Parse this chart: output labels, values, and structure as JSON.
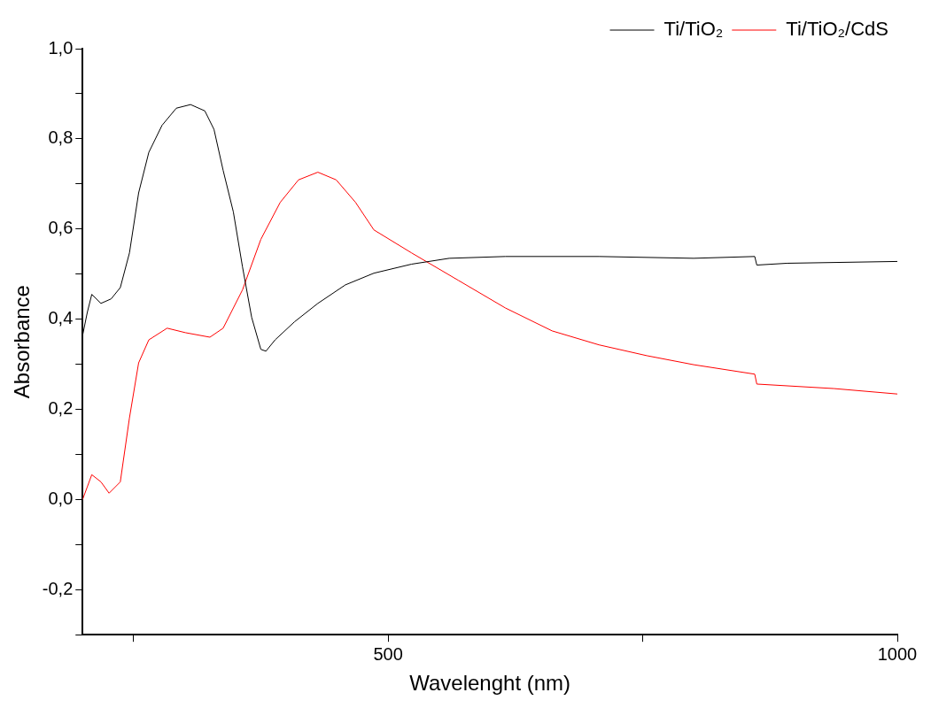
{
  "chart_data": {
    "type": "line",
    "xlabel": "Wavelenght (nm)",
    "ylabel": "Absorbance",
    "xlim": [
      200,
      1000
    ],
    "ylim": [
      -0.3,
      1.0
    ],
    "xticks": [
      {
        "value": 250,
        "label": null
      },
      500,
      {
        "value": 750,
        "label": null
      },
      1000
    ],
    "yticks": [
      {
        "value": -0.3,
        "label": null
      },
      {
        "value": -0.2,
        "label": "-0,2"
      },
      {
        "value": -0.1,
        "label": null
      },
      {
        "value": 0,
        "label": "0,0"
      },
      {
        "value": 0.1,
        "label": null
      },
      {
        "value": 0.2,
        "label": "0,2"
      },
      {
        "value": 0.3,
        "label": null
      },
      {
        "value": 0.4,
        "label": "0,4"
      },
      {
        "value": 0.5,
        "label": null
      },
      {
        "value": 0.6,
        "label": "0,6"
      },
      {
        "value": 0.7,
        "label": null
      },
      {
        "value": 0.8,
        "label": "0,8"
      },
      {
        "value": 0.9,
        "label": null
      },
      {
        "value": 1.0,
        "label": "1,0"
      }
    ],
    "grid": false,
    "legend": "top right",
    "marker": "none",
    "line_style": "solid",
    "series": [
      {
        "name": "Ti/TiO₂",
        "color": "#000000",
        "x": [
          200,
          204.6,
          209,
          218,
          228,
          237,
          246,
          255,
          265,
          278,
          292,
          306,
          320,
          329,
          338,
          348,
          357,
          366,
          375,
          380,
          389,
          408,
          431,
          458,
          486,
          523,
          560,
          615,
          707,
          800,
          860,
          862,
          892,
          1000
        ],
        "values": [
          0.364,
          0.415,
          0.455,
          0.435,
          0.445,
          0.47,
          0.547,
          0.68,
          0.77,
          0.83,
          0.868,
          0.876,
          0.862,
          0.821,
          0.73,
          0.638,
          0.516,
          0.404,
          0.333,
          0.329,
          0.354,
          0.394,
          0.435,
          0.476,
          0.502,
          0.522,
          0.535,
          0.539,
          0.539,
          0.535,
          0.539,
          0.52,
          0.524,
          0.528
        ]
      },
      {
        "name": "Ti/TiO₂/CdS",
        "color": "#ff0000",
        "x": [
          200,
          204.6,
          209,
          218,
          226,
          237,
          246,
          255,
          265,
          283,
          301,
          325,
          338,
          357,
          375,
          394,
          412,
          431,
          449,
          468,
          486,
          523,
          569,
          615,
          661,
          707,
          754,
          800,
          860,
          862,
          938,
          1000
        ],
        "values": [
          0.0,
          0.028,
          0.055,
          0.039,
          0.014,
          0.039,
          0.181,
          0.303,
          0.354,
          0.38,
          0.37,
          0.36,
          0.38,
          0.465,
          0.577,
          0.659,
          0.709,
          0.726,
          0.709,
          0.659,
          0.598,
          0.547,
          0.486,
          0.425,
          0.374,
          0.343,
          0.319,
          0.299,
          0.278,
          0.256,
          0.246,
          0.234
        ]
      }
    ]
  }
}
